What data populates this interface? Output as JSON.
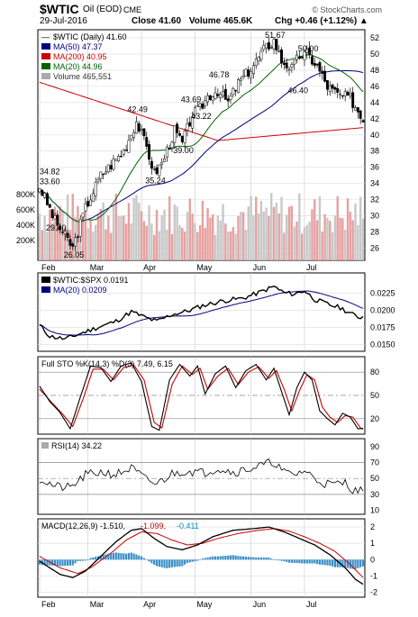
{
  "header": {
    "symbol": "$WTIC",
    "name": "Oil (EOD)",
    "exchange": "CME",
    "date": "29-Jul-2016",
    "close": "Close 41.60",
    "volume": "Volume 465.6K",
    "chg": "Chg +0.46 (+1.12%) ▲",
    "copyright": "© StockCharts.com"
  },
  "chart_data": [
    {
      "type": "candlestick",
      "name": "price",
      "legend": [
        {
          "text": "$WTIC (Daily) 41.60",
          "color": "#000000",
          "swatch": "none"
        },
        {
          "text": "MA(50) 47.37",
          "color": "#000080",
          "swatch": "#000080"
        },
        {
          "text": "MA(200) 40.95",
          "color": "#cc0000",
          "swatch": "#cc0000"
        },
        {
          "text": "MA(20) 44.96",
          "color": "#006400",
          "swatch": "#006400"
        },
        {
          "text": "Volume 465,551",
          "color": "#333333",
          "swatch": "#aaaaaa"
        }
      ],
      "x_ticks": [
        "Feb",
        "Mar",
        "Apr",
        "May",
        "Jun",
        "Jul"
      ],
      "ylim": [
        24.5,
        53
      ],
      "y_ticks": [
        26,
        28,
        30,
        32,
        34,
        36,
        38,
        40,
        42,
        44,
        46,
        48,
        50,
        52
      ],
      "vol_ticks": [
        "800K",
        "600K",
        "400K",
        "200K"
      ],
      "close_anchors": [
        [
          0,
          33.6
        ],
        [
          6,
          29.4
        ],
        [
          13,
          26.05
        ],
        [
          18,
          31
        ],
        [
          24,
          35
        ],
        [
          33,
          38
        ],
        [
          38,
          41.7
        ],
        [
          42,
          38.5
        ],
        [
          45,
          35.24
        ],
        [
          48,
          36.5
        ],
        [
          53,
          40.5
        ],
        [
          56,
          39
        ],
        [
          60,
          42.5
        ],
        [
          63,
          43.22
        ],
        [
          66,
          44.8
        ],
        [
          70,
          45.5
        ],
        [
          74,
          44
        ],
        [
          78,
          46.4
        ],
        [
          83,
          48.2
        ],
        [
          88,
          50.5
        ],
        [
          92,
          51.67
        ],
        [
          95,
          49.2
        ],
        [
          99,
          48.2
        ],
        [
          102,
          49.8
        ],
        [
          105,
          50
        ],
        [
          109,
          48.5
        ],
        [
          113,
          46
        ],
        [
          117,
          45
        ],
        [
          122,
          44.5
        ],
        [
          125,
          43
        ],
        [
          127,
          41.6
        ]
      ],
      "annotations": [
        {
          "text": "34.82",
          "i": 0,
          "v": 34.82
        },
        {
          "text": "33.60",
          "i": 3,
          "v": 33.6
        },
        {
          "text": "29.40",
          "i": 6,
          "v": 29.4
        },
        {
          "text": "26.05",
          "i": 13,
          "v": 26.05
        },
        {
          "text": "42.49",
          "i": 38,
          "v": 42.49
        },
        {
          "text": "35.24",
          "i": 45,
          "v": 35.24
        },
        {
          "text": "39.00",
          "i": 56,
          "v": 39.0
        },
        {
          "text": "43.69",
          "i": 59,
          "v": 43.69
        },
        {
          "text": "43.22",
          "i": 63,
          "v": 43.22
        },
        {
          "text": "46.78",
          "i": 70,
          "v": 46.78
        },
        {
          "text": "46.40",
          "i": 101,
          "v": 46.4
        },
        {
          "text": "51.67",
          "i": 92,
          "v": 51.67
        },
        {
          "text": "50.00",
          "i": 105,
          "v": 50.0
        }
      ]
    },
    {
      "type": "line",
      "name": "ratio",
      "legend": [
        {
          "text": "$WTIC:$SPX 0.0191",
          "color": "#000000",
          "swatch": "#000000"
        },
        {
          "text": "MA(20) 0.0209",
          "color": "#000080",
          "swatch": "#000080"
        }
      ],
      "ylim": [
        0.014,
        0.0255
      ],
      "y_ticks": [
        0.015,
        0.0175,
        0.02,
        0.0225
      ],
      "y_tick_labels": [
        "0.0150",
        "0.0175",
        "0.0200",
        "0.0225"
      ],
      "anchors": [
        [
          0,
          0.0178
        ],
        [
          4,
          0.0162
        ],
        [
          10,
          0.0158
        ],
        [
          16,
          0.0166
        ],
        [
          22,
          0.0174
        ],
        [
          30,
          0.0184
        ],
        [
          36,
          0.0198
        ],
        [
          42,
          0.0189
        ],
        [
          46,
          0.0184
        ],
        [
          52,
          0.0194
        ],
        [
          58,
          0.0199
        ],
        [
          64,
          0.0207
        ],
        [
          72,
          0.0214
        ],
        [
          80,
          0.0218
        ],
        [
          86,
          0.0226
        ],
        [
          92,
          0.0235
        ],
        [
          96,
          0.0226
        ],
        [
          100,
          0.0224
        ],
        [
          104,
          0.0229
        ],
        [
          108,
          0.0216
        ],
        [
          114,
          0.0208
        ],
        [
          118,
          0.0204
        ],
        [
          122,
          0.0196
        ],
        [
          125,
          0.019
        ],
        [
          127,
          0.0191
        ]
      ]
    },
    {
      "type": "line",
      "name": "stochastics",
      "legend": [
        {
          "text": "Full STO %K(14,3) %D(3) 7.49, 6.15",
          "color": "#000000",
          "swatch": "none"
        }
      ],
      "ylim": [
        0,
        100
      ],
      "y_ticks": [
        20,
        50,
        80
      ],
      "ref_lines": [
        20,
        50,
        80
      ],
      "k_anchors": [
        [
          0,
          62
        ],
        [
          4,
          42
        ],
        [
          8,
          28
        ],
        [
          12,
          7
        ],
        [
          16,
          48
        ],
        [
          20,
          88
        ],
        [
          24,
          86
        ],
        [
          28,
          68
        ],
        [
          32,
          88
        ],
        [
          36,
          92
        ],
        [
          40,
          68
        ],
        [
          44,
          10
        ],
        [
          47,
          5
        ],
        [
          51,
          70
        ],
        [
          55,
          90
        ],
        [
          59,
          75
        ],
        [
          62,
          88
        ],
        [
          65,
          52
        ],
        [
          69,
          78
        ],
        [
          73,
          88
        ],
        [
          77,
          60
        ],
        [
          81,
          82
        ],
        [
          85,
          90
        ],
        [
          89,
          70
        ],
        [
          92,
          85
        ],
        [
          95,
          55
        ],
        [
          98,
          25
        ],
        [
          101,
          60
        ],
        [
          104,
          80
        ],
        [
          107,
          70
        ],
        [
          110,
          30
        ],
        [
          113,
          20
        ],
        [
          116,
          12
        ],
        [
          119,
          27
        ],
        [
          122,
          22
        ],
        [
          125,
          7
        ],
        [
          127,
          7.49
        ]
      ],
      "d_anchors": [
        [
          0,
          58
        ],
        [
          5,
          40
        ],
        [
          9,
          26
        ],
        [
          13,
          10
        ],
        [
          17,
          45
        ],
        [
          21,
          84
        ],
        [
          25,
          84
        ],
        [
          29,
          70
        ],
        [
          33,
          86
        ],
        [
          37,
          89
        ],
        [
          41,
          70
        ],
        [
          45,
          15
        ],
        [
          48,
          8
        ],
        [
          52,
          64
        ],
        [
          56,
          88
        ],
        [
          60,
          77
        ],
        [
          63,
          85
        ],
        [
          66,
          58
        ],
        [
          70,
          75
        ],
        [
          74,
          85
        ],
        [
          78,
          64
        ],
        [
          82,
          80
        ],
        [
          86,
          87
        ],
        [
          90,
          72
        ],
        [
          93,
          82
        ],
        [
          96,
          58
        ],
        [
          99,
          30
        ],
        [
          102,
          56
        ],
        [
          105,
          77
        ],
        [
          108,
          70
        ],
        [
          111,
          35
        ],
        [
          114,
          22
        ],
        [
          117,
          15
        ],
        [
          120,
          24
        ],
        [
          123,
          22
        ],
        [
          126,
          8
        ],
        [
          127,
          6.15
        ]
      ]
    },
    {
      "type": "line",
      "name": "rsi",
      "legend": [
        {
          "text": "RSI(14) 34.22",
          "color": "#000000",
          "swatch": "none"
        }
      ],
      "ylim": [
        5,
        100
      ],
      "y_ticks": [
        10,
        30,
        50,
        70,
        90
      ],
      "ref_lines": [
        30,
        50,
        70
      ],
      "anchors": [
        [
          0,
          50
        ],
        [
          6,
          40
        ],
        [
          12,
          38
        ],
        [
          18,
          54
        ],
        [
          24,
          58
        ],
        [
          30,
          55
        ],
        [
          36,
          63
        ],
        [
          42,
          48
        ],
        [
          46,
          43
        ],
        [
          52,
          56
        ],
        [
          58,
          60
        ],
        [
          64,
          57
        ],
        [
          70,
          63
        ],
        [
          76,
          58
        ],
        [
          82,
          62
        ],
        [
          88,
          67
        ],
        [
          92,
          71
        ],
        [
          96,
          57
        ],
        [
          100,
          55
        ],
        [
          104,
          60
        ],
        [
          108,
          50
        ],
        [
          112,
          44
        ],
        [
          116,
          42
        ],
        [
          120,
          45
        ],
        [
          124,
          34
        ],
        [
          127,
          34.22
        ]
      ]
    },
    {
      "type": "line",
      "name": "macd",
      "legend": [
        {
          "text": "MACD(12,26,9) -1.510, ",
          "color": "#000000",
          "swatch": "none"
        },
        {
          "text": "-1.099, ",
          "color": "#cc0000",
          "swatch": "none"
        },
        {
          "text": "-0.411",
          "color": "#0088cc",
          "swatch": "none"
        }
      ],
      "ylim": [
        -2.3,
        2.5
      ],
      "y_ticks": [
        -2,
        -1,
        0,
        1,
        2
      ],
      "macd_anchors": [
        [
          0,
          -0.1
        ],
        [
          8,
          -0.9
        ],
        [
          13,
          -1.1
        ],
        [
          18,
          -0.7
        ],
        [
          24,
          0.2
        ],
        [
          30,
          1.1
        ],
        [
          36,
          1.8
        ],
        [
          40,
          1.9
        ],
        [
          45,
          1.3
        ],
        [
          50,
          0.8
        ],
        [
          56,
          0.6
        ],
        [
          62,
          0.9
        ],
        [
          68,
          1.4
        ],
        [
          76,
          1.8
        ],
        [
          84,
          1.9
        ],
        [
          90,
          2.0
        ],
        [
          96,
          1.7
        ],
        [
          102,
          1.3
        ],
        [
          108,
          0.9
        ],
        [
          114,
          0.3
        ],
        [
          120,
          -0.5
        ],
        [
          124,
          -1.2
        ],
        [
          127,
          -1.51
        ]
      ],
      "signal_anchors": [
        [
          0,
          0.2
        ],
        [
          8,
          -0.5
        ],
        [
          15,
          -0.85
        ],
        [
          20,
          -0.5
        ],
        [
          28,
          0.4
        ],
        [
          34,
          1.2
        ],
        [
          40,
          1.7
        ],
        [
          46,
          1.6
        ],
        [
          52,
          1.2
        ],
        [
          58,
          0.9
        ],
        [
          64,
          1.0
        ],
        [
          70,
          1.3
        ],
        [
          78,
          1.6
        ],
        [
          86,
          1.8
        ],
        [
          92,
          1.9
        ],
        [
          98,
          1.75
        ],
        [
          104,
          1.4
        ],
        [
          110,
          1.0
        ],
        [
          116,
          0.5
        ],
        [
          122,
          -0.3
        ],
        [
          127,
          -1.099
        ]
      ]
    }
  ]
}
